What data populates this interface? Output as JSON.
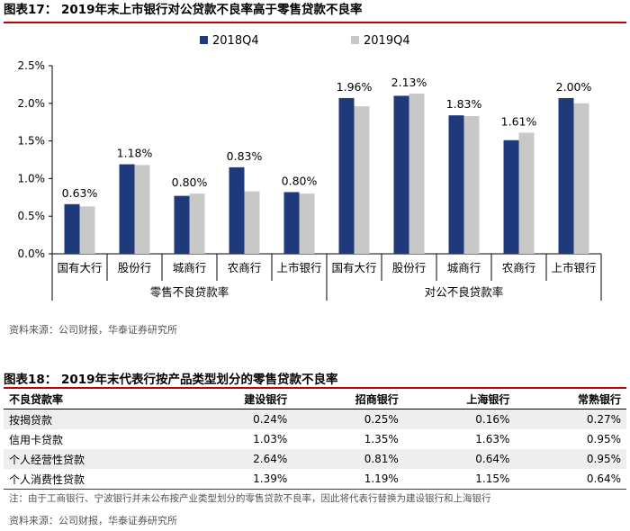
{
  "figure1": {
    "title": "图表17： 2019年末上市银行对公贷款不良率高于零售贷款不良率",
    "source": "资料来源：公司财报，华泰证券研究所"
  },
  "chart_data": {
    "type": "bar",
    "title": "2019年末上市银行对公贷款不良率高于零售贷款不良率",
    "ylabel": "",
    "xlabel": "",
    "ylim": [
      0,
      2.5
    ],
    "yticks": [
      "0.0%",
      "0.5%",
      "1.0%",
      "1.5%",
      "2.0%",
      "2.5%"
    ],
    "ytick_values": [
      0,
      0.5,
      1.0,
      1.5,
      2.0,
      2.5
    ],
    "legend_position": "top-center",
    "groups": [
      {
        "label": "零售不良贷款率",
        "categories": [
          "国有大行",
          "股份行",
          "城商行",
          "农商行",
          "上市银行"
        ]
      },
      {
        "label": "对公不良贷款率",
        "categories": [
          "国有大行",
          "股份行",
          "城商行",
          "农商行",
          "上市银行"
        ]
      }
    ],
    "categories": [
      "国有大行",
      "股份行",
      "城商行",
      "农商行",
      "上市银行",
      "国有大行",
      "股份行",
      "城商行",
      "农商行",
      "上市银行"
    ],
    "series": [
      {
        "name": "2018Q4",
        "color": "#1f3a7a",
        "values": [
          0.66,
          1.19,
          0.77,
          1.15,
          0.82,
          2.07,
          2.1,
          1.84,
          1.51,
          2.07
        ]
      },
      {
        "name": "2019Q4",
        "color": "#c8c8c8",
        "values": [
          0.63,
          1.18,
          0.8,
          0.83,
          0.8,
          1.96,
          2.13,
          1.83,
          1.61,
          2.0
        ]
      }
    ],
    "data_labels": [
      "0.63%",
      "1.18%",
      "0.80%",
      "0.83%",
      "0.80%",
      "1.96%",
      "2.13%",
      "1.83%",
      "1.61%",
      "2.00%"
    ]
  },
  "figure2": {
    "title": "图表18： 2019年末代表行按产品类型划分的零售贷款不良率",
    "headers": [
      "不良贷款率",
      "建设银行",
      "招商银行",
      "上海银行",
      "常熟银行"
    ],
    "rows": [
      [
        "按揭贷款",
        "0.24%",
        "0.25%",
        "0.16%",
        "0.27%"
      ],
      [
        "信用卡贷款",
        "1.03%",
        "1.35%",
        "1.63%",
        "0.95%"
      ],
      [
        "个人经营性贷款",
        "2.64%",
        "0.81%",
        "0.64%",
        "0.95%"
      ],
      [
        "个人消费性贷款",
        "1.39%",
        "1.19%",
        "1.15%",
        "0.64%"
      ]
    ],
    "note": "注：由于工商银行、宁波银行并未公布按产业类型划分的零售贷款不良率，因此将代表行替换为建设银行和上海银行",
    "source": "资料来源：公司财报，华泰证券研究所"
  }
}
